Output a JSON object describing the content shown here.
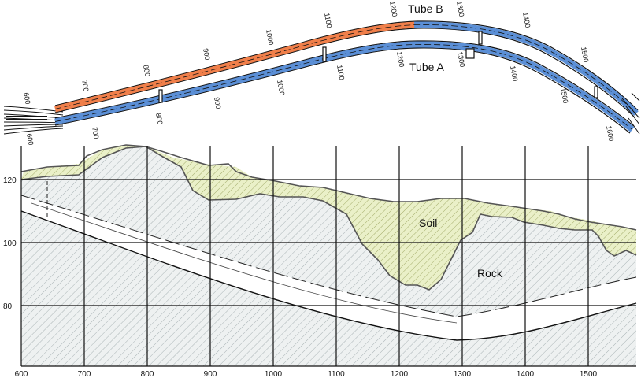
{
  "plan_view": {
    "tube_b_label": "Tube B",
    "tube_a_label": "Tube A",
    "tube_b_chainage_labels": [
      "600",
      "700",
      "800",
      "900",
      "1000",
      "1100",
      "1200",
      "1300",
      "1400",
      "1500"
    ],
    "tube_a_chainage_labels": [
      "600",
      "700",
      "800",
      "900",
      "1000",
      "1100",
      "1200",
      "1300",
      "1400",
      "1500",
      "1600"
    ],
    "colors": {
      "orange": "#f07f4a",
      "blue": "#5b8fd6"
    }
  },
  "profile": {
    "x_tick_labels": [
      "600",
      "700",
      "800",
      "900",
      "1000",
      "1100",
      "1200",
      "1300",
      "1400",
      "1500"
    ],
    "y_tick_labels": [
      "120",
      "100",
      "80"
    ],
    "soil_label": "Soil",
    "rock_label": "Rock",
    "colors": {
      "soil": "#e8eec4",
      "rock": "#e8ecec",
      "hatch": "#9aa6a8"
    }
  }
}
